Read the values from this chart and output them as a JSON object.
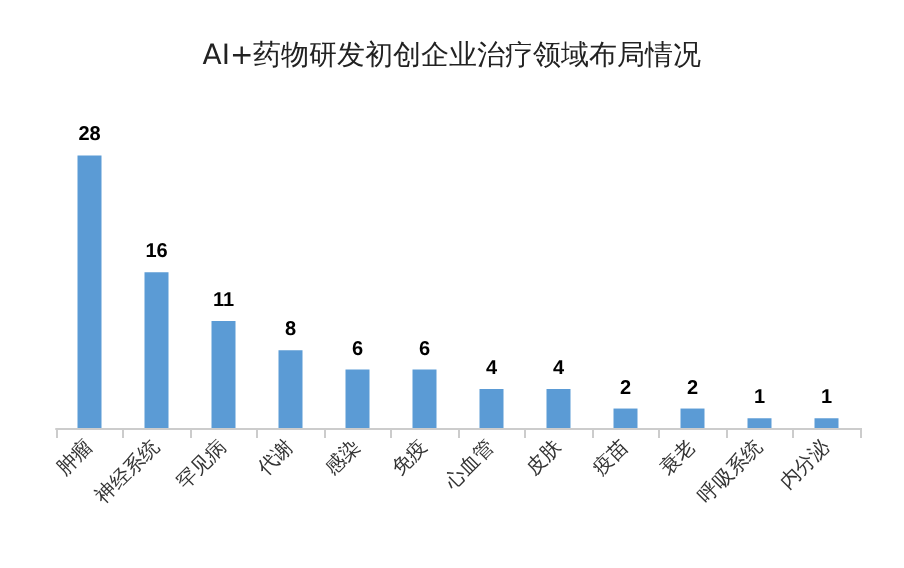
{
  "chart_data": {
    "type": "bar",
    "title": "AI+药物研发初创企业治疗领域布局情况",
    "categories": [
      "肿瘤",
      "神经系统",
      "罕见病",
      "代谢",
      "感染",
      "免疫",
      "心血管",
      "皮肤",
      "疫苗",
      "衰老",
      "呼吸系统",
      "内分泌"
    ],
    "values": [
      28,
      16,
      11,
      8,
      6,
      6,
      4,
      4,
      2,
      2,
      1,
      1
    ],
    "color": "#5b9bd5",
    "data_labels": true
  }
}
